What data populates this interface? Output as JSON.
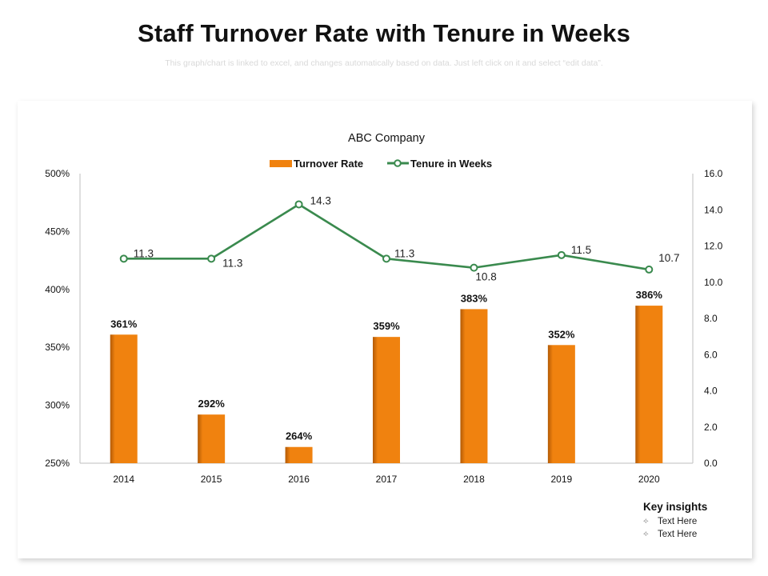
{
  "slide": {
    "title": "Staff Turnover Rate with Tenure in Weeks",
    "subtitle": "This graph/chart is linked to excel, and changes automatically based on data. Just left click on it and select “edit data”."
  },
  "key_insights": {
    "title": "Key insights",
    "items": [
      "Text Here",
      "Text Here"
    ],
    "bullet_icon": "diamond-bullet-icon"
  },
  "colors": {
    "bar": "#F0820F",
    "bar_shade": "#B35A05",
    "line": "#3A8A4E",
    "axis_text": "#111111"
  },
  "chart_data": {
    "type": "bar",
    "title": "ABC Company",
    "categories": [
      "2014",
      "2015",
      "2016",
      "2017",
      "2018",
      "2019",
      "2020"
    ],
    "series": [
      {
        "name": "Turnover Rate",
        "type": "bar",
        "axis": "left",
        "values": [
          361,
          292,
          264,
          359,
          383,
          352,
          386
        ],
        "data_labels": [
          "361%",
          "292%",
          "264%",
          "359%",
          "383%",
          "352%",
          "386%"
        ]
      },
      {
        "name": "Tenure in Weeks",
        "type": "line",
        "axis": "right",
        "values": [
          11.3,
          11.3,
          14.3,
          11.3,
          10.8,
          11.5,
          10.7
        ],
        "data_labels": [
          "11.3",
          "11.3",
          "14.3",
          "11.3",
          "10.8",
          "11.5",
          "10.7"
        ]
      }
    ],
    "y_left": {
      "ylim": [
        250,
        500
      ],
      "ticks": [
        "250%",
        "300%",
        "350%",
        "400%",
        "450%",
        "500%"
      ]
    },
    "y_right": {
      "ylim": [
        0,
        16
      ],
      "ticks": [
        "0.0",
        "2.0",
        "4.0",
        "6.0",
        "8.0",
        "10.0",
        "12.0",
        "14.0",
        "16.0"
      ]
    },
    "legend": "top-center",
    "grid": false
  }
}
